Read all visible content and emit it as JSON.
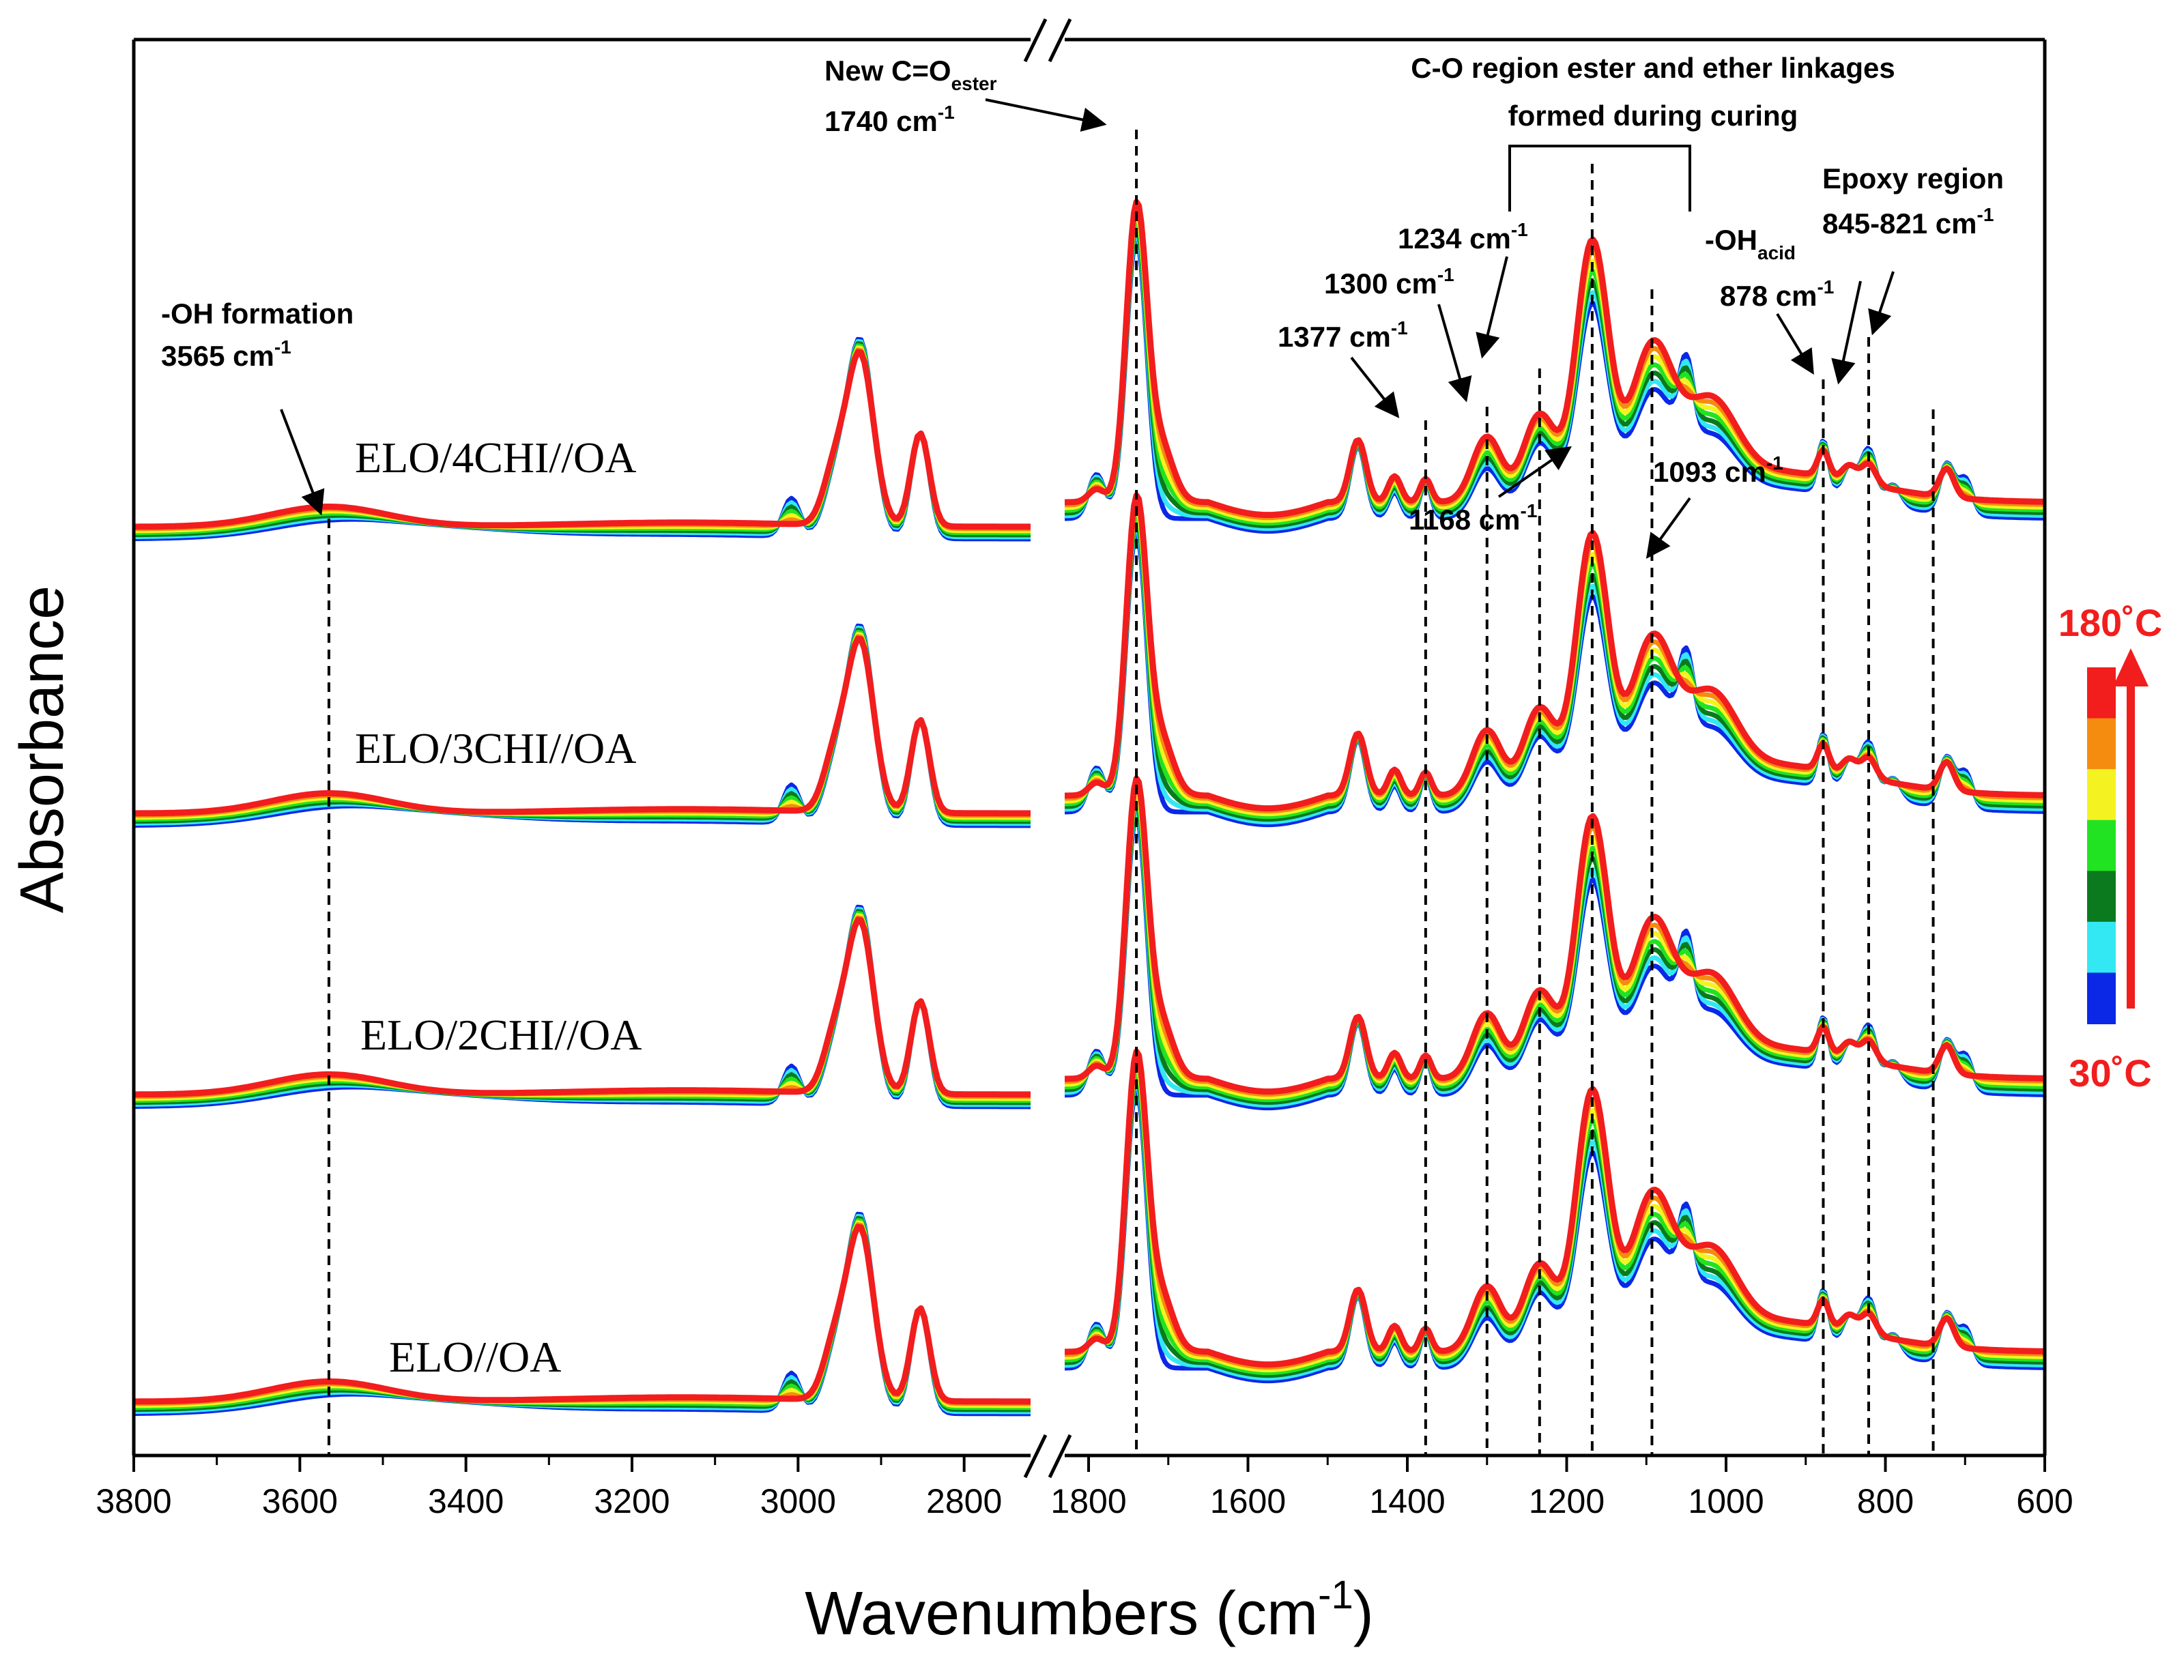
{
  "chart_data": {
    "type": "line",
    "title": "",
    "xlabel": "Wavenumbers (cm",
    "xlabel_sup": "-1",
    "xlabel_close": ")",
    "ylabel": "Absorbance",
    "x_reversed": true,
    "x_break": [
      2800,
      1800
    ],
    "xlim_left_segment": [
      3800,
      2720
    ],
    "xlim_right_segment": [
      1830,
      600
    ],
    "x_ticks_left": [
      3800,
      3600,
      3400,
      3200,
      3000,
      2800
    ],
    "x_ticks_right": [
      1800,
      1600,
      1400,
      1200,
      1000,
      800,
      600
    ],
    "temperature_scale": {
      "low": "30˚C",
      "high": "180˚C",
      "colors": [
        "#0a28e6",
        "#33e8f2",
        "#0b7a1e",
        "#21e321",
        "#f5f221",
        "#f58c0f",
        "#f21d1d"
      ]
    },
    "series": [
      {
        "name": "ELO/4CHI//OA",
        "label": "ELO/4CHI//OA",
        "row": 0
      },
      {
        "name": "ELO/3CHI//OA",
        "label": "ELO/3CHI//OA",
        "row": 1
      },
      {
        "name": "ELO/2CHI//OA",
        "label": "ELO/2CHI//OA",
        "row": 2
      },
      {
        "name": "ELO//OA",
        "label": "ELO//OA",
        "row": 3
      }
    ],
    "peak_markers_cm-1": [
      3565,
      1740,
      1377,
      1300,
      1234,
      1168,
      1093,
      878,
      845,
      821,
      740
    ],
    "annotations": {
      "oh_formation": {
        "line1": "-OH formation",
        "line2": "3565 cm",
        "sup": "-1"
      },
      "new_ester": {
        "line1": "New C=O",
        "sub": "ester",
        "line2": "1740 cm",
        "sup": "-1"
      },
      "co_region": {
        "line1": "C-O region ester and ether linkages",
        "line2": "formed during curing"
      },
      "p1377": {
        "text": "1377 cm",
        "sup": "-1"
      },
      "p1300": {
        "text": "1300 cm",
        "sup": "-1"
      },
      "p1234": {
        "text": "1234 cm",
        "sup": "-1"
      },
      "p1168": {
        "text": "1168 cm",
        "sup": "-1"
      },
      "p1093": {
        "text": "1093 cm",
        "sup": "-1"
      },
      "oh_acid": {
        "line1": "-OH",
        "sub": "acid",
        "line2": "878 cm",
        "sup": "-1"
      },
      "epoxy": {
        "line1": "Epoxy region",
        "line2": "845-821 cm",
        "sup": "-1"
      }
    }
  }
}
